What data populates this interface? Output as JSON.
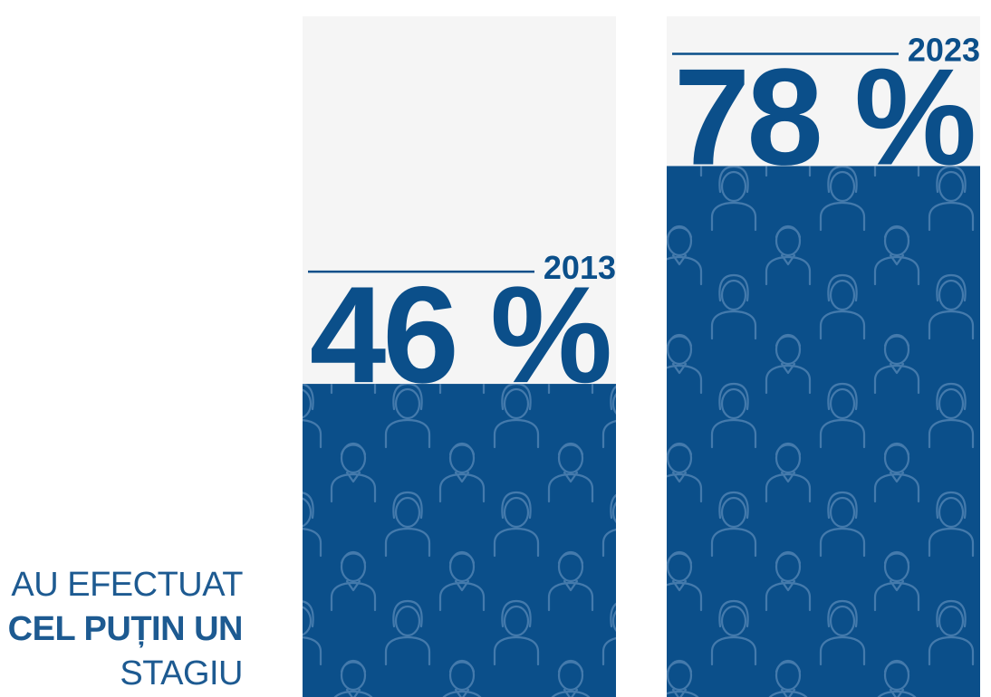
{
  "chart_data": {
    "type": "bar",
    "categories": [
      "2013",
      "2023"
    ],
    "values": [
      46,
      78
    ],
    "value_labels": [
      "46 %",
      "78 %"
    ],
    "ylim": [
      0,
      100
    ],
    "grid": false,
    "colors": {
      "bar": "#0b4f8a",
      "track": "#f5f5f5",
      "text": "#0b4f8a",
      "pattern": "#4a7fb0"
    }
  },
  "caption": {
    "line1": "AU EFECTUAT",
    "line2": "CEL PUȚIN UN",
    "line3": "STAGIU"
  }
}
